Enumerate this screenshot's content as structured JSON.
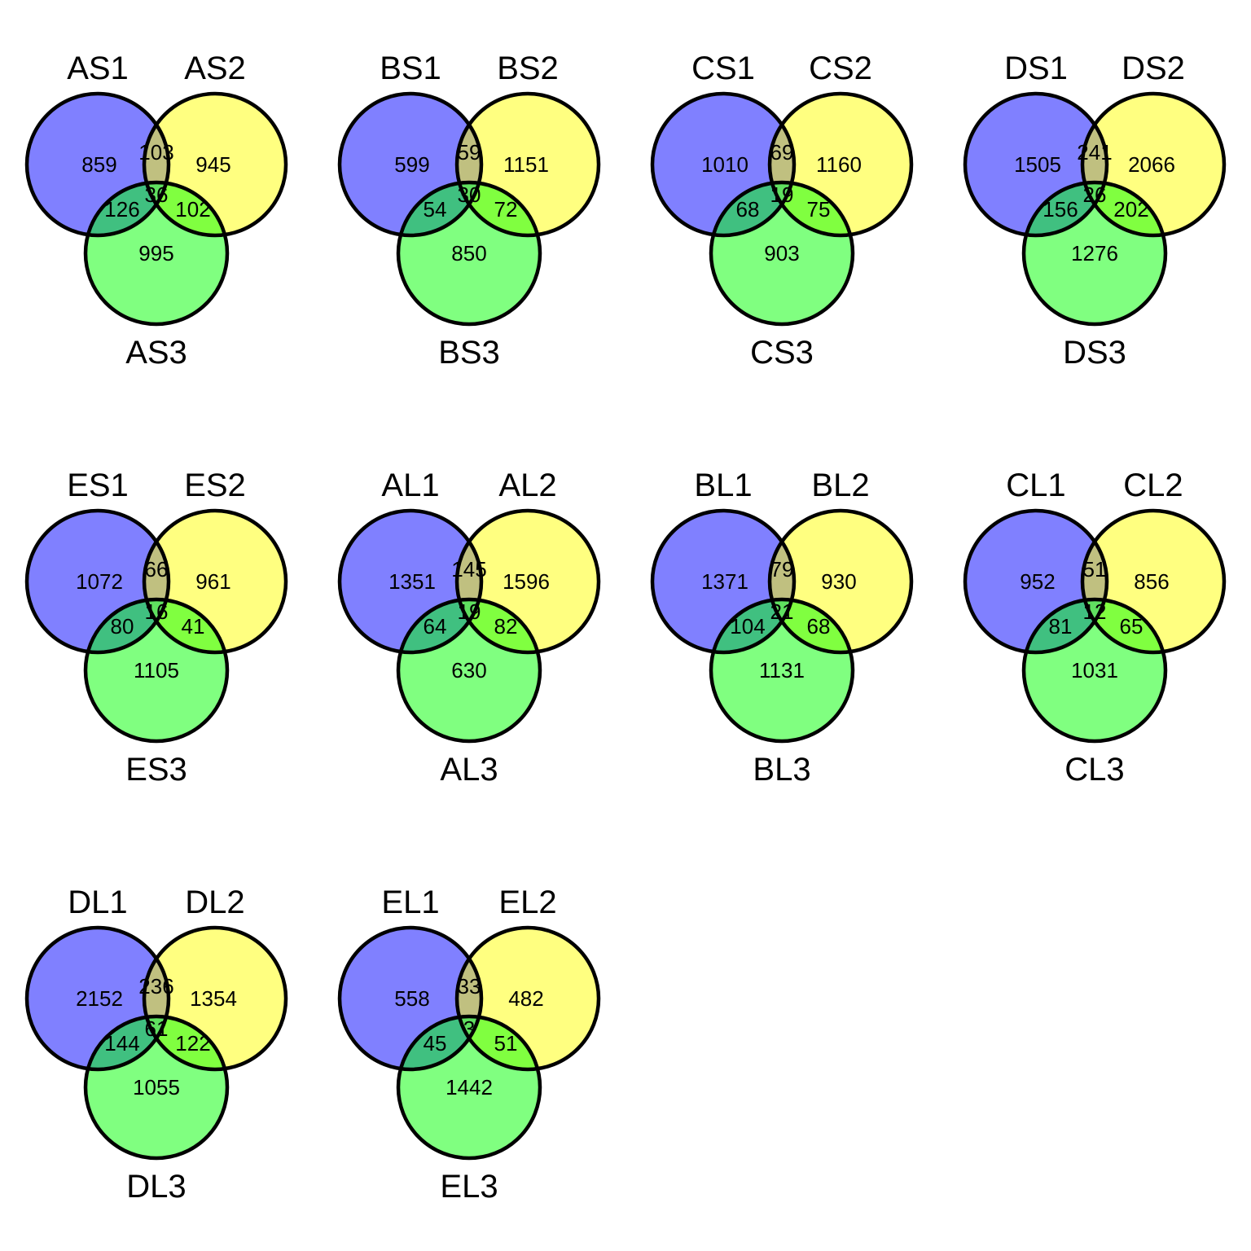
{
  "colors": {
    "set1": "#8080ff",
    "set2": "#ffff80",
    "set3": "#80ff80",
    "overlap12": "#c0c080",
    "overlap13": "#40c080",
    "overlap23": "#80ff40",
    "overlap123": "#60e060",
    "outline": "#000000"
  },
  "diagrams": [
    {
      "labels": [
        "AS1",
        "AS2",
        "AS3"
      ],
      "counts": {
        "only1": "859",
        "only2": "945",
        "only3": "995",
        "s12": "103",
        "s13": "126",
        "s23": "102",
        "s123": "36"
      }
    },
    {
      "labels": [
        "BS1",
        "BS2",
        "BS3"
      ],
      "counts": {
        "only1": "599",
        "only2": "1151",
        "only3": "850",
        "s12": "59",
        "s13": "54",
        "s23": "72",
        "s123": "30"
      }
    },
    {
      "labels": [
        "CS1",
        "CS2",
        "CS3"
      ],
      "counts": {
        "only1": "1010",
        "only2": "1160",
        "only3": "903",
        "s12": "69",
        "s13": "68",
        "s23": "75",
        "s123": "19"
      }
    },
    {
      "labels": [
        "DS1",
        "DS2",
        "DS3"
      ],
      "counts": {
        "only1": "1505",
        "only2": "2066",
        "only3": "1276",
        "s12": "241",
        "s13": "156",
        "s23": "202",
        "s123": "26"
      }
    },
    {
      "labels": [
        "ES1",
        "ES2",
        "ES3"
      ],
      "counts": {
        "only1": "1072",
        "only2": "961",
        "only3": "1105",
        "s12": "66",
        "s13": "80",
        "s23": "41",
        "s123": "16"
      }
    },
    {
      "labels": [
        "AL1",
        "AL2",
        "AL3"
      ],
      "counts": {
        "only1": "1351",
        "only2": "1596",
        "only3": "630",
        "s12": "145",
        "s13": "64",
        "s23": "82",
        "s123": "19"
      }
    },
    {
      "labels": [
        "BL1",
        "BL2",
        "BL3"
      ],
      "counts": {
        "only1": "1371",
        "only2": "930",
        "only3": "1131",
        "s12": "79",
        "s13": "104",
        "s23": "68",
        "s123": "21"
      }
    },
    {
      "labels": [
        "CL1",
        "CL2",
        "CL3"
      ],
      "counts": {
        "only1": "952",
        "only2": "856",
        "only3": "1031",
        "s12": "51",
        "s13": "81",
        "s23": "65",
        "s123": "12"
      }
    },
    {
      "labels": [
        "DL1",
        "DL2",
        "DL3"
      ],
      "counts": {
        "only1": "2152",
        "only2": "1354",
        "only3": "1055",
        "s12": "236",
        "s13": "144",
        "s23": "122",
        "s123": "61"
      }
    },
    {
      "labels": [
        "EL1",
        "EL2",
        "EL3"
      ],
      "counts": {
        "only1": "558",
        "only2": "482",
        "only3": "1442",
        "s12": "33",
        "s13": "45",
        "s23": "51",
        "s123": "3"
      }
    }
  ]
}
